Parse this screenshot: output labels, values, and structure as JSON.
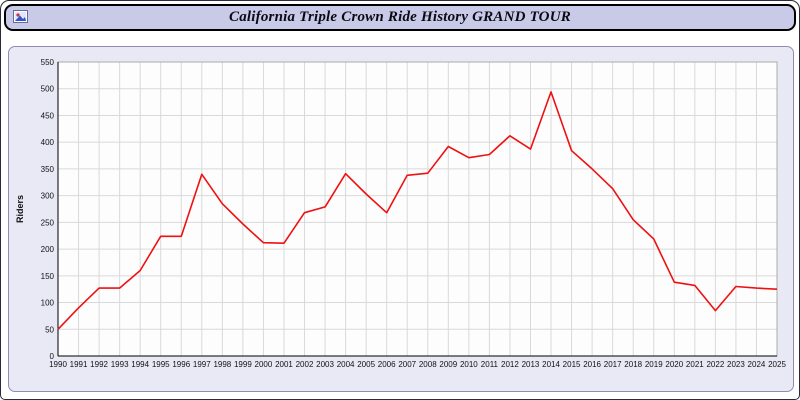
{
  "header": {
    "title": "California Triple Crown Ride History GRAND TOUR"
  },
  "colors": {
    "header_bg": "#c9c9e8",
    "panel_bg": "#e9e9f6",
    "plot_bg": "#fdfdfd",
    "grid": "#d9d9d9",
    "axis": "#000000",
    "plot_frame": "#aaaaaa",
    "line": "#ee1111"
  },
  "chart_data": {
    "type": "line",
    "title": "California Triple Crown Ride History GRAND TOUR",
    "xlabel": "",
    "ylabel": "Riders",
    "ylim": [
      0,
      550
    ],
    "ytick_step": 50,
    "grid": true,
    "legend_position": "none",
    "x": [
      1990,
      1991,
      1992,
      1993,
      1994,
      1995,
      1996,
      1997,
      1998,
      1999,
      2000,
      2001,
      2002,
      2003,
      2004,
      2005,
      2006,
      2007,
      2008,
      2009,
      2010,
      2011,
      2012,
      2013,
      2014,
      2015,
      2016,
      2017,
      2018,
      2019,
      2020,
      2021,
      2022,
      2023,
      2024,
      2025
    ],
    "series": [
      {
        "name": "Riders",
        "color": "#ee1111",
        "values": [
          50,
          90,
          127,
          127,
          160,
          224,
          224,
          340,
          285,
          247,
          212,
          211,
          268,
          279,
          341,
          303,
          268,
          338,
          342,
          392,
          371,
          377,
          412,
          387,
          494,
          384,
          350,
          313,
          255,
          219,
          138,
          132,
          85,
          130,
          127,
          125
        ]
      }
    ]
  }
}
